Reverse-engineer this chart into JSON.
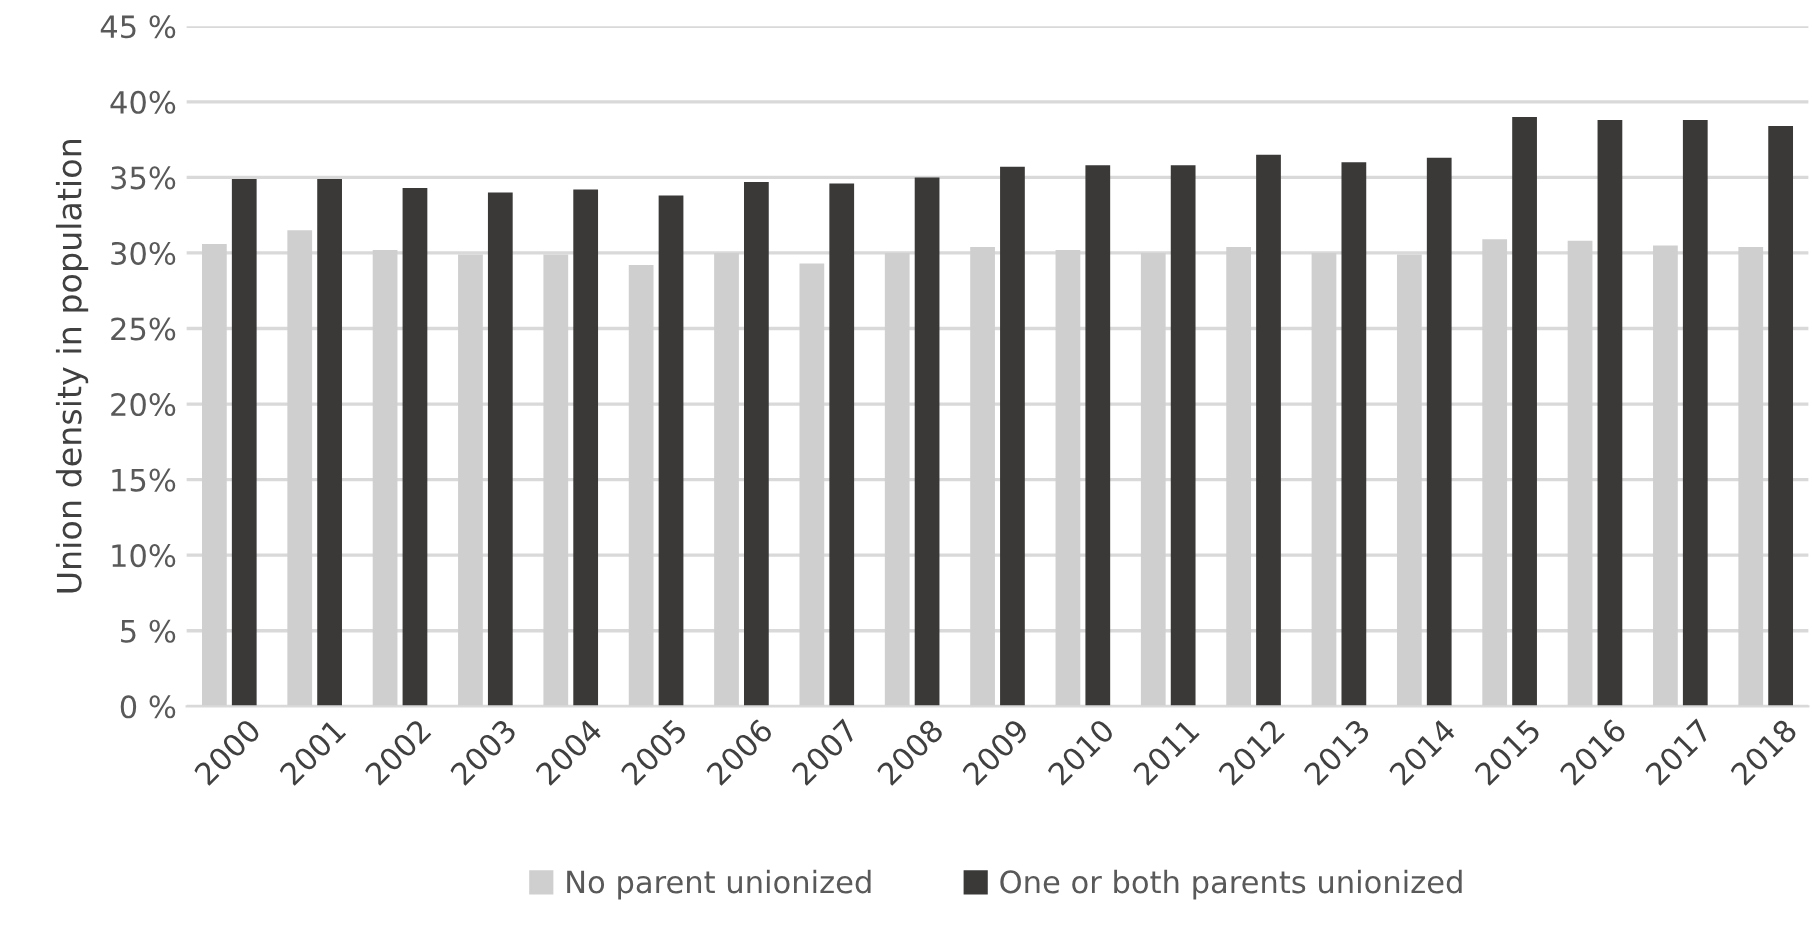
{
  "chart_data": {
    "type": "bar",
    "ylabel": "Union density in population",
    "categories": [
      "2000",
      "2001",
      "2002",
      "2003",
      "2004",
      "2005",
      "2006",
      "2007",
      "2008",
      "2009",
      "2010",
      "2011",
      "2012",
      "2013",
      "2014",
      "2015",
      "2016",
      "2017",
      "2018"
    ],
    "series": [
      {
        "name": "No parent unionized",
        "color": "#d0cfcf",
        "values": [
          30.6,
          31.5,
          30.2,
          29.9,
          29.9,
          29.2,
          30.0,
          29.3,
          30.0,
          30.4,
          30.2,
          30.0,
          30.4,
          30.0,
          29.9,
          30.9,
          30.8,
          30.5,
          30.4
        ]
      },
      {
        "name": "One or both parents unionized",
        "color": "#3a3938",
        "values": [
          34.9,
          34.9,
          34.3,
          34.0,
          34.2,
          33.8,
          34.7,
          34.6,
          35.0,
          35.7,
          35.8,
          35.8,
          36.5,
          36.0,
          36.3,
          39.0,
          38.8,
          38.8,
          38.4
        ]
      }
    ],
    "ylim": [
      0,
      45
    ],
    "yticks": [
      {
        "value": 0,
        "label": "0 %"
      },
      {
        "value": 5,
        "label": "5 %"
      },
      {
        "value": 10,
        "label": "10%"
      },
      {
        "value": 15,
        "label": "15%"
      },
      {
        "value": 20,
        "label": "20%"
      },
      {
        "value": 25,
        "label": "25%"
      },
      {
        "value": 30,
        "label": "30%"
      },
      {
        "value": 35,
        "label": "35%"
      },
      {
        "value": 40,
        "label": "40%"
      },
      {
        "value": 45,
        "label": "45 %"
      }
    ],
    "grid": "y",
    "legend": "bottom"
  }
}
